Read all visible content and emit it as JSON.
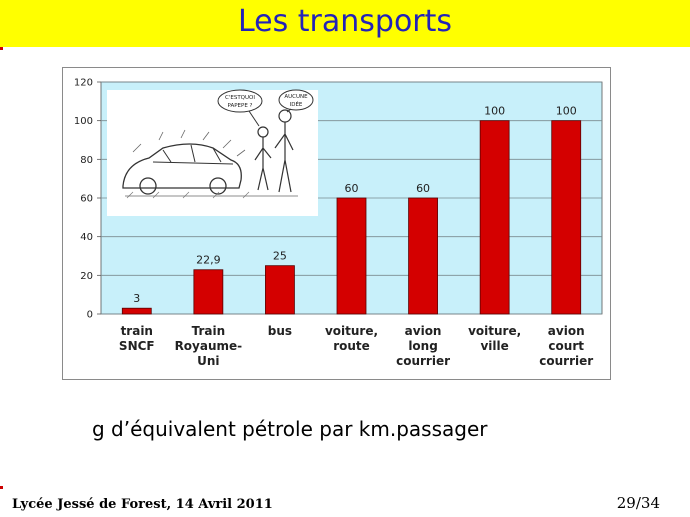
{
  "header": {
    "title": "Les transports"
  },
  "chart_data": {
    "type": "bar",
    "categories": [
      [
        "train",
        "SNCF"
      ],
      [
        "Train",
        "Royaume-",
        "Uni"
      ],
      [
        "bus"
      ],
      [
        "voiture,",
        "route"
      ],
      [
        "avion",
        "long",
        "courrier"
      ],
      [
        "voiture,",
        "ville"
      ],
      [
        "avion",
        "court",
        "courrier"
      ]
    ],
    "values": [
      3,
      22.9,
      25,
      60,
      60,
      100,
      100
    ],
    "value_labels": [
      "3",
      "22,9",
      "25",
      "60",
      "60",
      "100",
      "100"
    ],
    "yticks": [
      "0",
      "20",
      "40",
      "60",
      "80",
      "100",
      "120"
    ],
    "ylim": [
      0,
      120
    ],
    "grid": true,
    "bar_color": "#d40000",
    "plot_background": "#c8f0fa"
  },
  "cartoon": {
    "bubble_left": [
      "C'ESTQUOI",
      "PAPEPE ?"
    ],
    "bubble_right": [
      "AUCUNE",
      "IDÉE"
    ]
  },
  "caption": "g d’équivalent pétrole par km.passager",
  "footer": {
    "left": "Lycée Jessé de Forest, 14 Avril 2011",
    "right": "29/34"
  }
}
